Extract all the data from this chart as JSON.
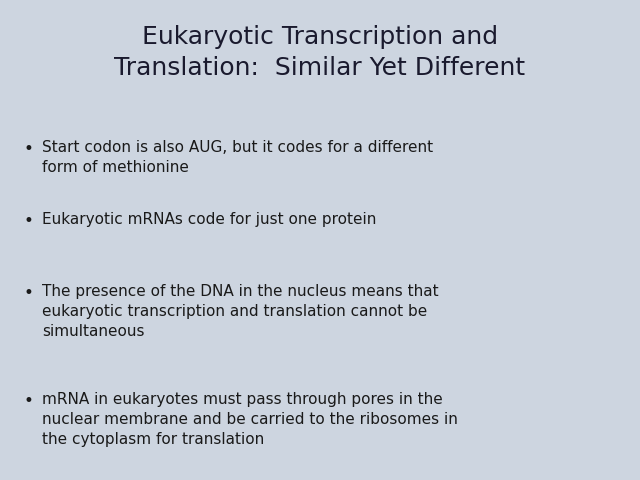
{
  "title_line1": "Eukaryotic Transcription and",
  "title_line2": "Translation:  Similar Yet Different",
  "background_color": "#cdd5e0",
  "title_color": "#1a1a2e",
  "text_color": "#1a1a1a",
  "bullet_points": [
    "Start codon is also AUG, but it codes for a different\nform of methionine",
    "Eukaryotic mRNAs code for just one protein",
    "The presence of the DNA in the nucleus means that\neukaryotic transcription and translation cannot be\nsimultaneous",
    "mRNA in eukaryotes must pass through pores in the\nnuclear membrane and be carried to the ribosomes in\nthe cytoplasm for translation"
  ],
  "title_fontsize": 18,
  "bullet_fontsize": 11,
  "bullet_symbol": "•"
}
